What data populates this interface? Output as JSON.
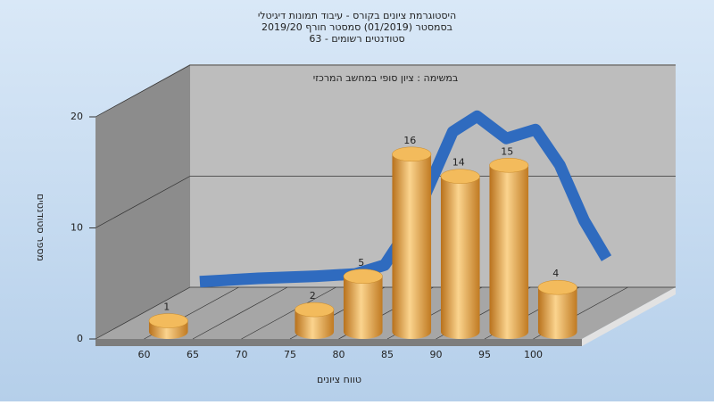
{
  "chart_data": {
    "type": "histogram",
    "title": [
      "היסטוגרמת ציונים בקורס - עיבוד תמונות דיגיטלי",
      "בסמסטר  (01/2019)  סמסטר חורף 2019/20",
      "סטודנטים רשומים - 63"
    ],
    "subtitle": "במשימה : ציון סופי במחשב המרכזי",
    "xlabel": "טווח ציונים",
    "ylabel": "מספר סטודנטים",
    "bins": [
      60,
      65,
      70,
      75,
      80,
      85,
      90,
      95,
      100,
      105
    ],
    "counts": [
      1,
      0,
      0,
      2,
      5,
      16,
      14,
      15,
      4
    ],
    "color": "#e8a640",
    "xlim": [
      55,
      105
    ],
    "xticks": [
      60,
      65,
      70,
      75,
      80,
      85,
      90,
      95,
      100
    ],
    "ylim": [
      0,
      20
    ],
    "yticks": [
      0,
      10,
      20
    ],
    "grid": true,
    "curve": {
      "color": "#2f6bbf",
      "x": [
        56,
        62,
        68,
        72,
        75,
        78,
        80,
        82,
        84.5,
        87.5,
        90.5,
        93,
        95.5,
        97.8
      ],
      "values": [
        0.5,
        0.8,
        1,
        1.2,
        2,
        6,
        10,
        14,
        15.4,
        13.4,
        14.2,
        11,
        6,
        2.6
      ]
    }
  }
}
